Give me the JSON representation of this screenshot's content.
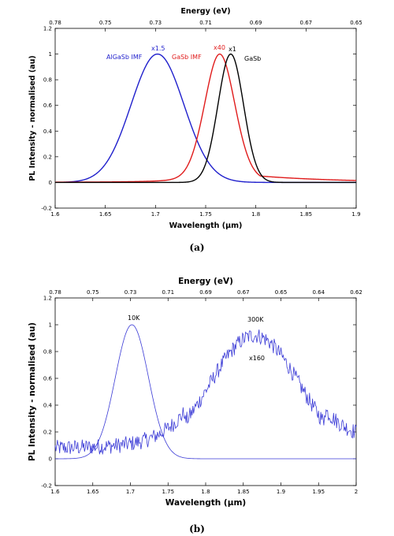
{
  "chart_data": [
    {
      "type": "line",
      "panel": "a",
      "caption": "(a)",
      "xlabel": "Wavelength (µm)",
      "ylabel": "PL Intensity - normalised (au)",
      "x2label": "Energy (eV)",
      "xlim": [
        1.6,
        1.9
      ],
      "ylim": [
        -0.2,
        1.2
      ],
      "xticks": [
        "1.6",
        "1.65",
        "1.7",
        "1.75",
        "1.8",
        "1.85",
        "1.9"
      ],
      "yticks": [
        "-0.2",
        "0",
        "0.2",
        "0.4",
        "0.6",
        "0.8",
        "1",
        "1.2"
      ],
      "x2ticks": [
        "0.78",
        "0.75",
        "0.73",
        "0.71",
        "0.69",
        "0.67",
        "0.65"
      ],
      "grid": false,
      "series": [
        {
          "name": "AlGaSb IMF",
          "scale_label": "x1.5",
          "color": "#1f1fcc",
          "peak_x": 1.702,
          "fwhm_left": 0.062,
          "fwhm_right": 0.062,
          "tail": 0.0
        },
        {
          "name": "GaSb IMF",
          "scale_label": "x40",
          "color": "#e01b1b",
          "peak_x": 1.764,
          "fwhm_left": 0.036,
          "fwhm_right": 0.036,
          "tail": 0.05
        },
        {
          "name": "GaSb",
          "scale_label": "x1",
          "color": "#000000",
          "peak_x": 1.775,
          "fwhm_left": 0.03,
          "fwhm_right": 0.03,
          "tail": 0.0
        }
      ]
    },
    {
      "type": "line",
      "panel": "b",
      "caption": "(b)",
      "xlabel": "Wavelength (µm)",
      "ylabel": "PL Intensity - normalised (au)",
      "x2label": "Energy (eV)",
      "xlim": [
        1.6,
        2.0
      ],
      "ylim": [
        -0.2,
        1.2
      ],
      "xticks": [
        "1.6",
        "1.65",
        "1.7",
        "1.75",
        "1.8",
        "1.85",
        "1.9",
        "1.95",
        "2"
      ],
      "yticks": [
        "-0.2",
        "0",
        "0.2",
        "0.4",
        "0.6",
        "0.8",
        "1",
        "1.2"
      ],
      "x2ticks": [
        "0.78",
        "0.75",
        "0.73",
        "0.71",
        "0.69",
        "0.67",
        "0.65",
        "0.64",
        "0.62"
      ],
      "grid": false,
      "series": [
        {
          "name": "10K",
          "color": "#3b3bd6",
          "peak_x": 1.702,
          "fwhm": 0.052,
          "noise": 0.0
        },
        {
          "name": "300K",
          "scale_label": "x160",
          "color": "#3b3bd6",
          "peak_x": 1.865,
          "fwhm": 0.14,
          "noise": 0.06
        }
      ]
    }
  ]
}
